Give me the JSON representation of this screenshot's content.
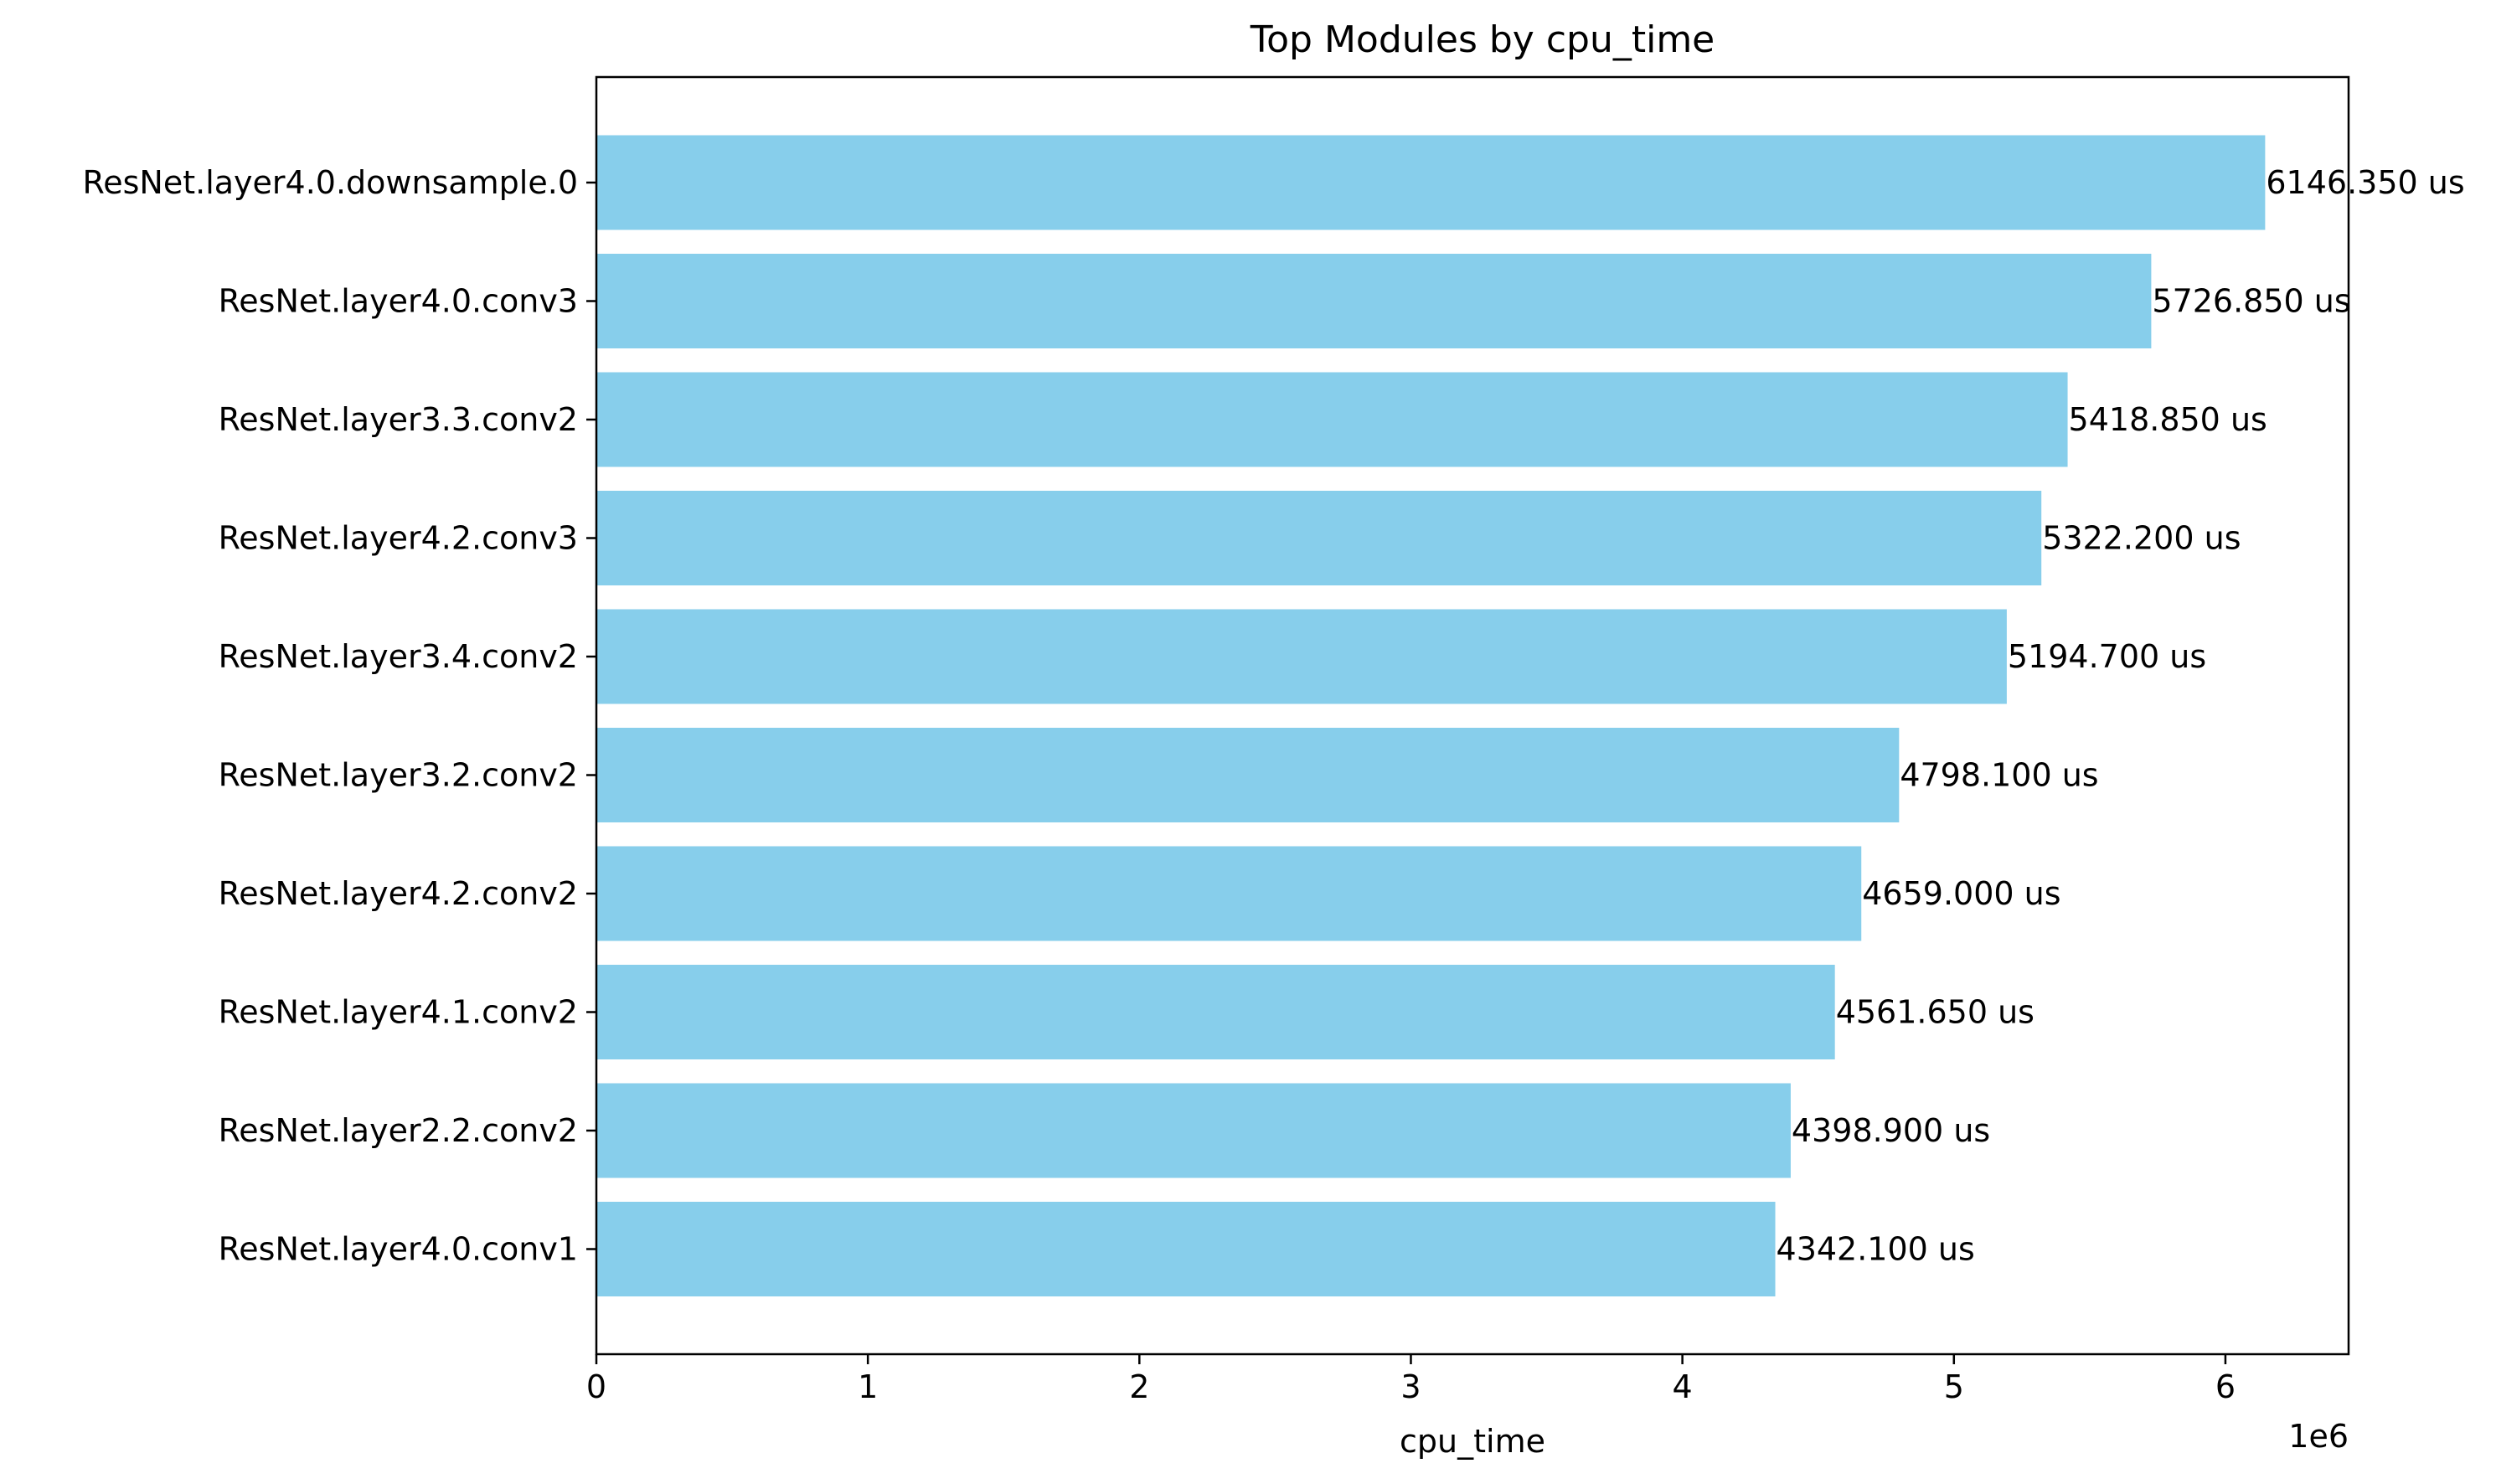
{
  "chart_data": {
    "type": "bar",
    "orientation": "horizontal",
    "title": "Top Modules by cpu_time",
    "xlabel": "cpu_time",
    "ylabel": "",
    "x_scale_label": "1e6",
    "x_ticks": [
      0,
      1,
      2,
      3,
      4,
      5,
      6
    ],
    "x_tick_labels": [
      "0",
      "1",
      "2",
      "3",
      "4",
      "5",
      "6"
    ],
    "xlim": [
      0,
      6453667
    ],
    "grid": false,
    "legend": "none",
    "bar_color": "#87CEEB",
    "categories": [
      "ResNet.layer4.0.downsample.0",
      "ResNet.layer4.0.conv3",
      "ResNet.layer3.3.conv2",
      "ResNet.layer4.2.conv3",
      "ResNet.layer3.4.conv2",
      "ResNet.layer3.2.conv2",
      "ResNet.layer4.2.conv2",
      "ResNet.layer4.1.conv2",
      "ResNet.layer2.2.conv2",
      "ResNet.layer4.0.conv1"
    ],
    "values": [
      6146350,
      5726850,
      5418850,
      5322200,
      5194700,
      4798100,
      4659000,
      4561650,
      4398900,
      4342100
    ],
    "value_labels": [
      "6146.350 us",
      "5726.850 us",
      "5418.850 us",
      "5322.200 us",
      "5194.700 us",
      "4798.100 us",
      "4659.000 us",
      "4561.650 us",
      "4398.900 us",
      "4342.100 us"
    ]
  }
}
